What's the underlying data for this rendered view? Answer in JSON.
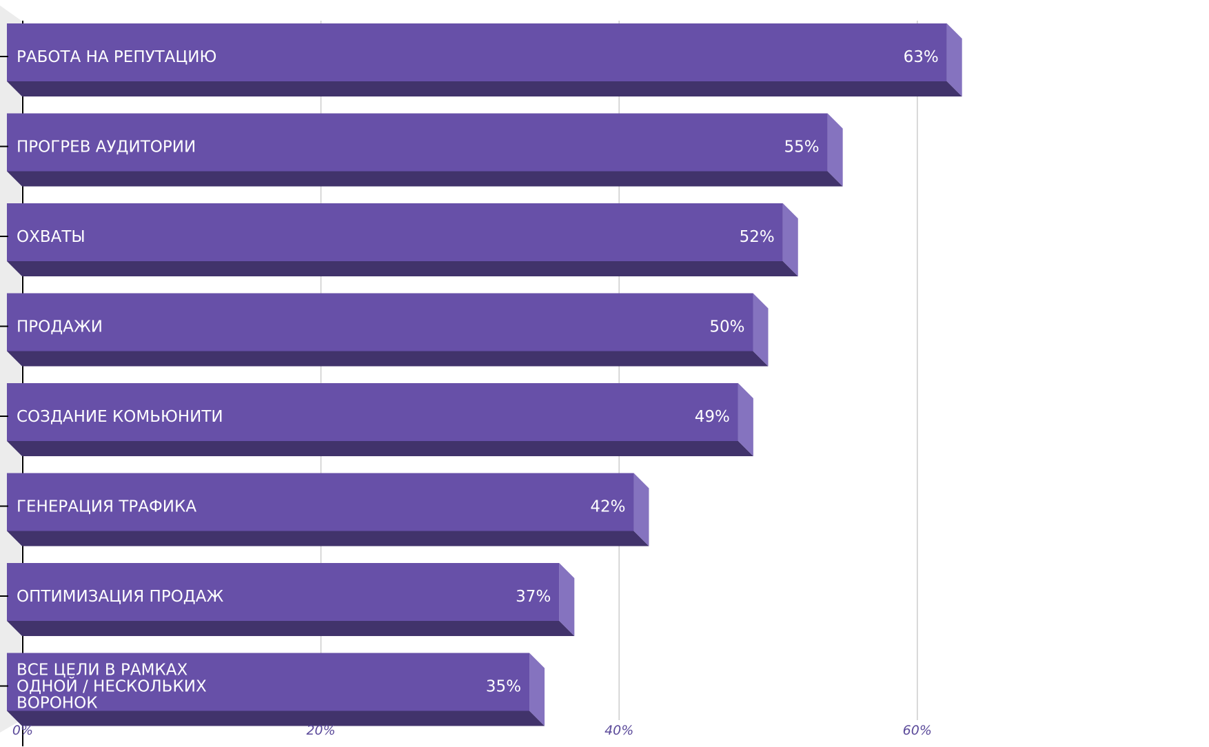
{
  "chart_data": {
    "type": "bar",
    "orientation": "horizontal",
    "categories": [
      "РАБОТА НА РЕПУТАЦИЮ",
      "ПРОГРЕВ АУДИТОРИИ",
      "ОХВАТЫ",
      "ПРОДАЖИ",
      "СОЗДАНИЕ КОМЬЮНИТИ",
      "ГЕНЕРАЦИЯ ТРАФИКА",
      "ОПТИМИЗАЦИЯ ПРОДАЖ",
      "ВСЕ ЦЕЛИ В РАМКАХ ОДНОЙ / НЕСКОЛЬКИХ ВОРОНОК"
    ],
    "category_lines": [
      [
        "РАБОТА НА РЕПУТАЦИЮ"
      ],
      [
        "ПРОГРЕВ АУДИТОРИИ"
      ],
      [
        "ОХВАТЫ"
      ],
      [
        "ПРОДАЖИ"
      ],
      [
        "СОЗДАНИЕ КОМЬЮНИТИ"
      ],
      [
        "ГЕНЕРАЦИЯ ТРАФИКА"
      ],
      [
        "ОПТИМИЗАЦИЯ ПРОДАЖ"
      ],
      [
        "ВСЕ ЦЕЛИ В РАМКАХ",
        "ОДНОЙ / НЕСКОЛЬКИХ",
        "ВОРОНОК"
      ]
    ],
    "values": [
      63,
      55,
      52,
      50,
      49,
      42,
      37,
      35
    ],
    "value_labels": [
      "63%",
      "55%",
      "52%",
      "50%",
      "49%",
      "42%",
      "37%",
      "35%"
    ],
    "xlim": [
      0,
      60
    ],
    "xticks": [
      0,
      20,
      40,
      60
    ],
    "xtick_labels": [
      "0%",
      "20%",
      "40%",
      "60%"
    ],
    "grid": true,
    "style": "3d",
    "colors": {
      "bar_front": "#6750a8",
      "bar_bottom": "#41336b",
      "bar_side": "#8573bf",
      "tick_text": "#5b4a9a",
      "grid": "#cccccc",
      "axis": "#000000",
      "wall": "#ececec"
    }
  }
}
